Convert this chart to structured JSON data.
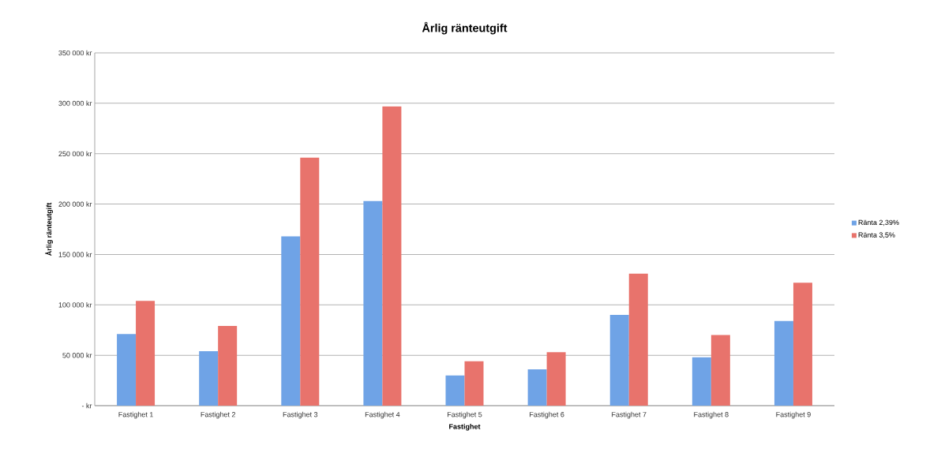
{
  "chart_data": {
    "type": "bar",
    "title": "Årlig ränteutgift",
    "xlabel": "Fastighet",
    "ylabel": "Årlig ränteutgift",
    "categories": [
      "Fastighet 1",
      "Fastighet 2",
      "Fastighet 3",
      "Fastighet 4",
      "Fastighet 5",
      "Fastighet 6",
      "Fastighet 7",
      "Fastighet 8",
      "Fastighet 9"
    ],
    "series": [
      {
        "name": "Ränta 2,39%",
        "color": "#6fa3e6",
        "values": [
          71000,
          54000,
          168000,
          203000,
          30000,
          36000,
          90000,
          48000,
          84000
        ]
      },
      {
        "name": "Ränta 3,5%",
        "color": "#e8736c",
        "values": [
          104000,
          79000,
          246000,
          297000,
          44000,
          53000,
          131000,
          70000,
          122000
        ]
      }
    ],
    "ylim": [
      0,
      350000
    ],
    "yticks": [
      {
        "value": 0,
        "label": "- kr"
      },
      {
        "value": 50000,
        "label": "50 000 kr"
      },
      {
        "value": 100000,
        "label": "100 000 kr"
      },
      {
        "value": 150000,
        "label": "150 000 kr"
      },
      {
        "value": 200000,
        "label": "200 000 kr"
      },
      {
        "value": 250000,
        "label": "250 000 kr"
      },
      {
        "value": 300000,
        "label": "300 000 kr"
      },
      {
        "value": 350000,
        "label": "350 000 kr"
      }
    ],
    "grid": "y",
    "legend": "right"
  }
}
